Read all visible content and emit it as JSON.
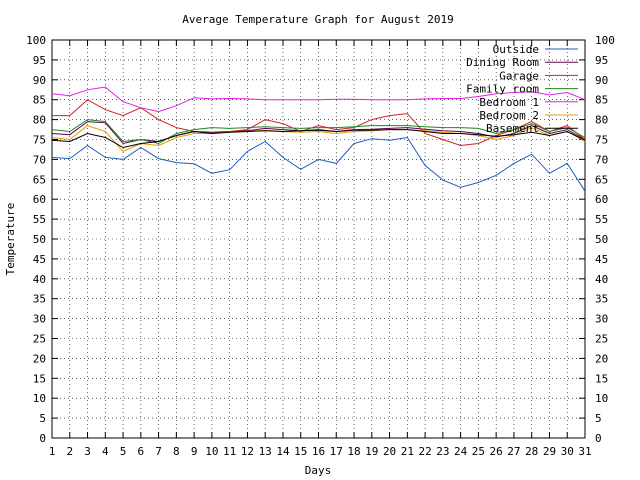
{
  "chart_data": {
    "type": "line",
    "title": "Average Temperature Graph for August 2019",
    "xlabel": "Days",
    "ylabel": "Temperature",
    "xlim": [
      1,
      31
    ],
    "ylim": [
      0,
      100
    ],
    "y_ticks": [
      0,
      5,
      10,
      15,
      20,
      25,
      30,
      35,
      40,
      45,
      50,
      55,
      60,
      65,
      70,
      75,
      80,
      85,
      90,
      95,
      100
    ],
    "x_ticks": [
      1,
      2,
      3,
      4,
      5,
      6,
      7,
      8,
      9,
      10,
      11,
      12,
      13,
      14,
      15,
      16,
      17,
      18,
      19,
      20,
      21,
      22,
      23,
      24,
      25,
      26,
      27,
      28,
      29,
      30,
      31
    ],
    "grid": true,
    "legend_position": "top-right",
    "x": [
      1,
      2,
      3,
      4,
      5,
      6,
      7,
      8,
      9,
      10,
      11,
      12,
      13,
      14,
      15,
      16,
      17,
      18,
      19,
      20,
      21,
      22,
      23,
      24,
      25,
      26,
      27,
      28,
      29,
      30,
      31
    ],
    "series": [
      {
        "name": "Outside",
        "color": "#1f5fbf",
        "values": [
          70.5,
          70.2,
          73.5,
          70.5,
          70.0,
          73.0,
          70.2,
          69.2,
          68.9,
          66.5,
          67.4,
          72.0,
          74.5,
          70.5,
          67.5,
          70.0,
          69.0,
          74.0,
          75.2,
          74.8,
          75.5,
          68.5,
          64.8,
          63.0,
          64.2,
          66.0,
          69.0,
          71.3,
          66.5,
          69.0,
          62.0
        ]
      },
      {
        "name": "Dining Room",
        "color": "#600050",
        "values": [
          76.5,
          76.2,
          79.5,
          79.2,
          74.0,
          75.0,
          74.5,
          76.0,
          77.0,
          76.8,
          77.0,
          77.2,
          77.8,
          77.5,
          77.2,
          77.5,
          77.0,
          77.5,
          77.6,
          77.8,
          78.0,
          77.6,
          77.2,
          77.0,
          76.5,
          75.6,
          76.5,
          78.5,
          76.5,
          77.5,
          75.0
        ]
      },
      {
        "name": "Garage",
        "color": "#d42020",
        "values": [
          81.0,
          81.0,
          85.0,
          82.5,
          81.0,
          83.0,
          80.0,
          78.0,
          77.0,
          76.5,
          77.0,
          77.5,
          80.0,
          79.0,
          77.0,
          78.5,
          77.5,
          78.0,
          80.0,
          81.0,
          81.5,
          76.5,
          75.0,
          73.5,
          74.0,
          76.0,
          77.5,
          79.5,
          77.0,
          78.5,
          75.0
        ]
      },
      {
        "name": "Family room",
        "color": "#1a8a1a",
        "values": [
          77.5,
          77.0,
          80.0,
          79.5,
          74.5,
          75.0,
          74.0,
          76.5,
          77.5,
          78.0,
          77.8,
          78.0,
          78.2,
          78.0,
          77.8,
          78.0,
          78.0,
          78.2,
          78.5,
          78.5,
          78.5,
          78.2,
          78.0,
          78.0,
          77.8,
          76.5,
          77.5,
          79.0,
          77.0,
          78.0,
          75.5
        ]
      },
      {
        "name": "Bedroom 1",
        "color": "#e020e0",
        "values": [
          86.5,
          86.0,
          87.5,
          88.2,
          84.5,
          83.0,
          82.0,
          83.5,
          85.5,
          85.2,
          85.3,
          85.2,
          85.0,
          85.0,
          85.0,
          85.0,
          85.1,
          85.1,
          85.0,
          85.0,
          85.0,
          85.2,
          85.3,
          85.3,
          85.8,
          86.5,
          86.8,
          87.0,
          86.2,
          86.8,
          85.0
        ]
      },
      {
        "name": "Bedroom 2",
        "color": "#e0a000",
        "values": [
          75.5,
          75.0,
          78.5,
          77.0,
          72.0,
          74.0,
          73.5,
          75.5,
          76.5,
          76.5,
          76.8,
          77.0,
          77.3,
          77.0,
          76.8,
          77.0,
          76.5,
          77.0,
          77.2,
          77.5,
          77.5,
          77.2,
          76.8,
          76.5,
          76.0,
          75.0,
          76.0,
          78.0,
          76.0,
          77.0,
          74.5
        ]
      },
      {
        "name": "Basement",
        "color": "#000000",
        "values": [
          74.8,
          74.5,
          76.5,
          75.5,
          73.0,
          74.0,
          74.5,
          76.0,
          77.0,
          76.5,
          76.8,
          77.0,
          77.2,
          77.0,
          77.2,
          77.3,
          77.0,
          77.3,
          77.3,
          77.5,
          77.5,
          77.0,
          76.5,
          76.5,
          76.2,
          75.8,
          76.2,
          76.8,
          76.0,
          77.0,
          74.8
        ]
      }
    ]
  }
}
